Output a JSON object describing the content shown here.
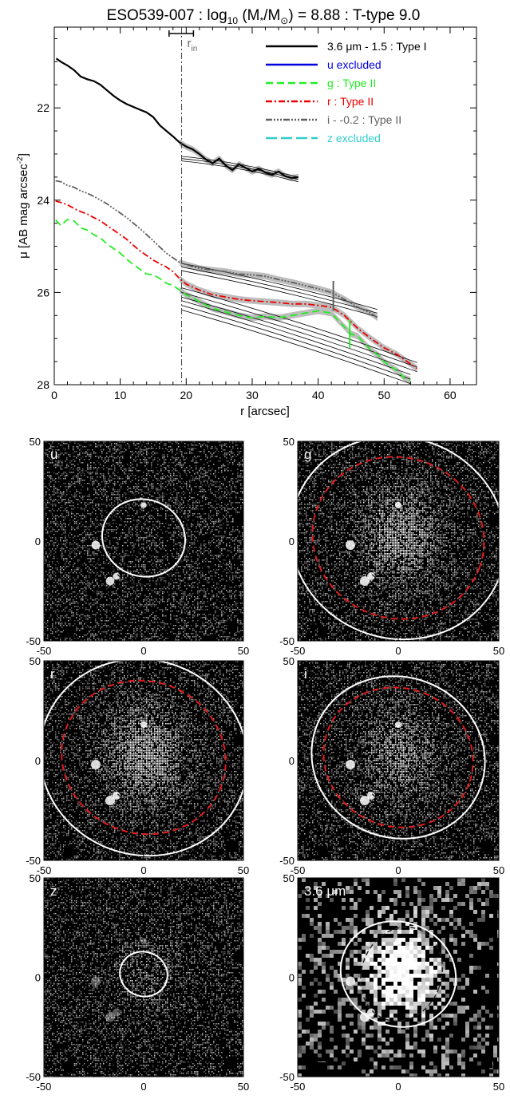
{
  "profile": {
    "title": {
      "galaxy": "ESO539-007 : log",
      "sub10": "10",
      "mass_mid": " (M",
      "mass_star": "*",
      "mass_slash": "/M",
      "sun": "⊙",
      "mass_tail": ") = 8.88 : T-type 9.0"
    },
    "rin_label": "r",
    "rin_sub": "in",
    "xlabel": "r [arcsec]",
    "ylabel": {
      "main": "μ [AB mag arcsec",
      "sup": "-2",
      "close": "]"
    },
    "colors": {
      "ch1": "#000000",
      "u": "#0000dd",
      "g": "#22ee22",
      "r": "#ee0000",
      "i": "#606060",
      "z": "#33cccc",
      "band": "#bdbdbd"
    },
    "legend": [
      {
        "label": "3.6 μm - 1.5 : Type I",
        "color": "#000000",
        "dash": ""
      },
      {
        "label": "u excluded",
        "color": "#0000dd",
        "dash": ""
      },
      {
        "label": "g : Type II",
        "color": "#22ee22",
        "dash": "9,5"
      },
      {
        "label": "r : Type II",
        "color": "#ee0000",
        "dash": "8,3,2,3"
      },
      {
        "label": "i - -0.2 : Type II",
        "color": "#606060",
        "dash": "8,2,2,2,2,2,2,2"
      },
      {
        "label": "z excluded",
        "color": "#33cccc",
        "dash": "14,5"
      }
    ]
  },
  "chart_data": {
    "type": "line",
    "xlim": [
      0,
      64
    ],
    "ylim": [
      28,
      20.25
    ],
    "xticks": [
      0,
      10,
      20,
      30,
      40,
      50,
      60
    ],
    "yticks": [
      22,
      24,
      26,
      28
    ],
    "grid": false,
    "legend_position": "top-right",
    "r_in": 19.3,
    "series": [
      {
        "name": "3.6 μm - 1.5 : Type I",
        "key": "ch1",
        "x": [
          0.3,
          1,
          2,
          3,
          4,
          5,
          6,
          7,
          8,
          9,
          10,
          11,
          12,
          13,
          14,
          15,
          16,
          17,
          18,
          19,
          20,
          21,
          22,
          23,
          24,
          25,
          26,
          27,
          28,
          29,
          30,
          31,
          32,
          33,
          34,
          35,
          36,
          37
        ],
        "y": [
          20.93,
          21.0,
          21.08,
          21.18,
          21.32,
          21.38,
          21.42,
          21.5,
          21.62,
          21.74,
          21.84,
          21.92,
          21.98,
          22.04,
          22.1,
          22.2,
          22.38,
          22.5,
          22.62,
          22.75,
          22.84,
          22.9,
          23.0,
          23.12,
          23.2,
          23.1,
          23.25,
          23.35,
          23.22,
          23.3,
          23.38,
          23.32,
          23.4,
          23.45,
          23.38,
          23.48,
          23.52,
          23.5
        ]
      },
      {
        "name": "g : Type II",
        "key": "g",
        "x": [
          0.2,
          1,
          2,
          3,
          4,
          5,
          6,
          7,
          8,
          9,
          10,
          11,
          12,
          13,
          14,
          15,
          16,
          17,
          18,
          19,
          20,
          22,
          24,
          26,
          28,
          30,
          32,
          34,
          36,
          38,
          40,
          42,
          43,
          44,
          45,
          46,
          47,
          48,
          49,
          50,
          51,
          52,
          53,
          54
        ],
        "y": [
          24.43,
          24.55,
          24.42,
          24.45,
          24.6,
          24.65,
          24.75,
          24.82,
          24.95,
          25.05,
          25.15,
          25.28,
          25.4,
          25.5,
          25.6,
          25.62,
          25.7,
          25.8,
          25.85,
          25.95,
          26.05,
          26.2,
          26.35,
          26.42,
          26.5,
          26.55,
          26.52,
          26.55,
          26.5,
          26.45,
          26.4,
          26.45,
          26.6,
          26.75,
          26.9,
          26.95,
          27.1,
          27.25,
          27.35,
          27.5,
          27.6,
          27.7,
          27.85,
          27.9
        ]
      },
      {
        "name": "r : Type II",
        "key": "r",
        "x": [
          0.2,
          1,
          2,
          3,
          4,
          5,
          6,
          7,
          8,
          9,
          10,
          11,
          12,
          13,
          14,
          15,
          16,
          17,
          18,
          19,
          20,
          22,
          24,
          26,
          28,
          30,
          32,
          34,
          36,
          38,
          40,
          42,
          44,
          46,
          48,
          50,
          52,
          54,
          55
        ],
        "y": [
          24.02,
          24.05,
          24.1,
          24.18,
          24.25,
          24.3,
          24.38,
          24.45,
          24.55,
          24.65,
          24.75,
          24.85,
          24.98,
          25.1,
          25.2,
          25.3,
          25.38,
          25.45,
          25.55,
          25.7,
          25.82,
          25.95,
          26.05,
          26.1,
          26.15,
          26.18,
          26.2,
          26.22,
          26.25,
          26.25,
          26.28,
          26.32,
          26.5,
          26.78,
          27.0,
          27.2,
          27.35,
          27.55,
          27.65
        ]
      },
      {
        "name": "i - -0.2 : Type II",
        "key": "i",
        "x": [
          0.2,
          1,
          2,
          3,
          4,
          5,
          6,
          7,
          8,
          9,
          10,
          11,
          12,
          13,
          14,
          15,
          16,
          17,
          18,
          19,
          20,
          22,
          24,
          26,
          28,
          30,
          32,
          34,
          36,
          38,
          40,
          42,
          44,
          46,
          48,
          49
        ],
        "y": [
          23.58,
          23.6,
          23.68,
          23.72,
          23.8,
          23.85,
          23.92,
          24.0,
          24.08,
          24.18,
          24.28,
          24.38,
          24.5,
          24.62,
          24.75,
          24.88,
          25.02,
          25.15,
          25.25,
          25.35,
          25.4,
          25.48,
          25.52,
          25.55,
          25.6,
          25.62,
          25.65,
          25.72,
          25.78,
          25.85,
          25.92,
          26.0,
          26.15,
          26.32,
          26.45,
          26.55
        ]
      }
    ],
    "fits": [
      {
        "key": "ch1",
        "x": [
          19.3,
          37
        ],
        "y": [
          23.1,
          23.55
        ],
        "offsets": [
          0,
          0.05,
          -0.05
        ]
      },
      {
        "key": "i",
        "x": [
          19.3,
          49
        ],
        "y": [
          25.45,
          26.45
        ],
        "offsets": [
          0,
          0.08,
          -0.08
        ]
      },
      {
        "key": "r",
        "x": [
          19.3,
          55
        ],
        "y": [
          26.0,
          27.62
        ],
        "offsets": [
          0,
          0.1,
          -0.1
        ]
      },
      {
        "key": "g",
        "x": [
          19.3,
          54
        ],
        "y": [
          26.28,
          27.88
        ],
        "offsets": [
          0,
          0.1,
          -0.1
        ]
      }
    ],
    "break_marks": [
      {
        "key": "i",
        "x": 42.3,
        "y1": 25.75,
        "y2": 26.4
      },
      {
        "key": "g",
        "x": 44.8,
        "y1": 26.6,
        "y2": 27.2
      }
    ],
    "rin_bar": [
      17.4,
      21.1
    ]
  },
  "images": {
    "tick_labels_x": [
      "-50",
      "0",
      "50"
    ],
    "tick_labels_y": [
      "50",
      "0",
      "-50"
    ],
    "panels": [
      {
        "band": "u",
        "brightness": 0.0,
        "ell1": {
          "rx": 0.42,
          "ry": 0.52,
          "rot": 20
        },
        "ell2": null
      },
      {
        "band": "g",
        "brightness": 0.9,
        "ell1": {
          "rx": 1.08,
          "ry": 1.35,
          "rot": 20
        },
        "ell2": {
          "rx": 0.86,
          "ry": 1.08,
          "rot": 20
        }
      },
      {
        "band": "r",
        "brightness": 1.0,
        "ell1": {
          "rx": 1.05,
          "ry": 1.32,
          "rot": 20
        },
        "ell2": {
          "rx": 0.83,
          "ry": 1.03,
          "rot": 20
        }
      },
      {
        "band": "i",
        "brightness": 0.7,
        "ell1": {
          "rx": 0.87,
          "ry": 1.08,
          "rot": 20
        },
        "ell2": {
          "rx": 0.75,
          "ry": 0.93,
          "rot": 20
        }
      },
      {
        "band": "z",
        "brightness": 0.3,
        "ell1": {
          "rx": 0.24,
          "ry": 0.3,
          "rot": 20
        },
        "ell2": null
      },
      {
        "band": "3.6 μm",
        "brightness": 1.2,
        "ell1": {
          "rx": 0.58,
          "ry": 0.7,
          "rot": 20
        },
        "ell2": null
      }
    ]
  }
}
